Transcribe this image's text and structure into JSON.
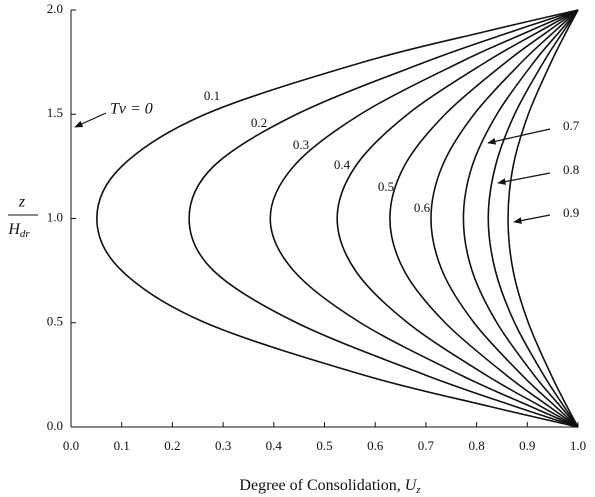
{
  "chart_data": {
    "type": "line",
    "x_label": {
      "text": "Degree of Consolidation, ",
      "var": "U",
      "sub": "z"
    },
    "y_label": {
      "numerator": "z",
      "denominator": "H",
      "denominator_sub": "dr"
    },
    "annotation": "Tv = 0",
    "z": [
      0,
      0.1,
      0.25,
      0.5,
      0.75,
      1.0,
      1.25,
      1.5,
      1.75,
      1.9,
      2.0
    ],
    "series": [
      {
        "name": "0.1",
        "color": "#111",
        "values": [
          1,
          0.823,
          0.576,
          0.265,
          0.1,
          0.051,
          0.1,
          0.265,
          0.576,
          0.823,
          1
        ]
      },
      {
        "name": "0.2",
        "color": "#111",
        "values": [
          1,
          0.874,
          0.698,
          0.445,
          0.281,
          0.233,
          0.281,
          0.445,
          0.698,
          0.874,
          1
        ]
      },
      {
        "name": "0.3",
        "color": "#111",
        "values": [
          1,
          0.905,
          0.768,
          0.571,
          0.439,
          0.393,
          0.439,
          0.571,
          0.768,
          0.905,
          1
        ]
      },
      {
        "name": "0.4",
        "color": "#111",
        "values": [
          1,
          0.926,
          0.818,
          0.664,
          0.561,
          0.525,
          0.561,
          0.664,
          0.818,
          0.926,
          1
        ]
      },
      {
        "name": "0.5",
        "color": "#111",
        "values": [
          1,
          0.942,
          0.858,
          0.738,
          0.657,
          0.629,
          0.657,
          0.738,
          0.858,
          0.942,
          1
        ]
      },
      {
        "name": "0.6",
        "color": "#111",
        "values": [
          1,
          0.955,
          0.889,
          0.795,
          0.732,
          0.71,
          0.732,
          0.795,
          0.889,
          0.955,
          1
        ]
      },
      {
        "name": "0.7",
        "color": "#111",
        "values": [
          1,
          0.965,
          0.913,
          0.84,
          0.791,
          0.774,
          0.791,
          0.84,
          0.913,
          0.965,
          1
        ]
      },
      {
        "name": "0.8",
        "color": "#111",
        "values": [
          1,
          0.972,
          0.932,
          0.875,
          0.837,
          0.823,
          0.837,
          0.875,
          0.932,
          0.972,
          1
        ]
      },
      {
        "name": "0.9",
        "color": "#111",
        "values": [
          1,
          0.978,
          0.947,
          0.902,
          0.872,
          0.862,
          0.872,
          0.902,
          0.947,
          0.978,
          1
        ]
      }
    ],
    "xlim": [
      0,
      1
    ],
    "ylim": [
      0,
      2
    ],
    "xticks": [
      {
        "value": 0,
        "label": "0.0"
      },
      0.1,
      0.2,
      0.3,
      0.4,
      0.5,
      0.6,
      0.7,
      0.8,
      0.9,
      {
        "value": 1,
        "label": "1.0"
      }
    ],
    "yticks": [
      {
        "value": 0,
        "label": "0.0"
      },
      0.5,
      {
        "value": 1,
        "label": "1.0"
      },
      1.5,
      {
        "value": 2,
        "label": "2.0"
      }
    ]
  }
}
